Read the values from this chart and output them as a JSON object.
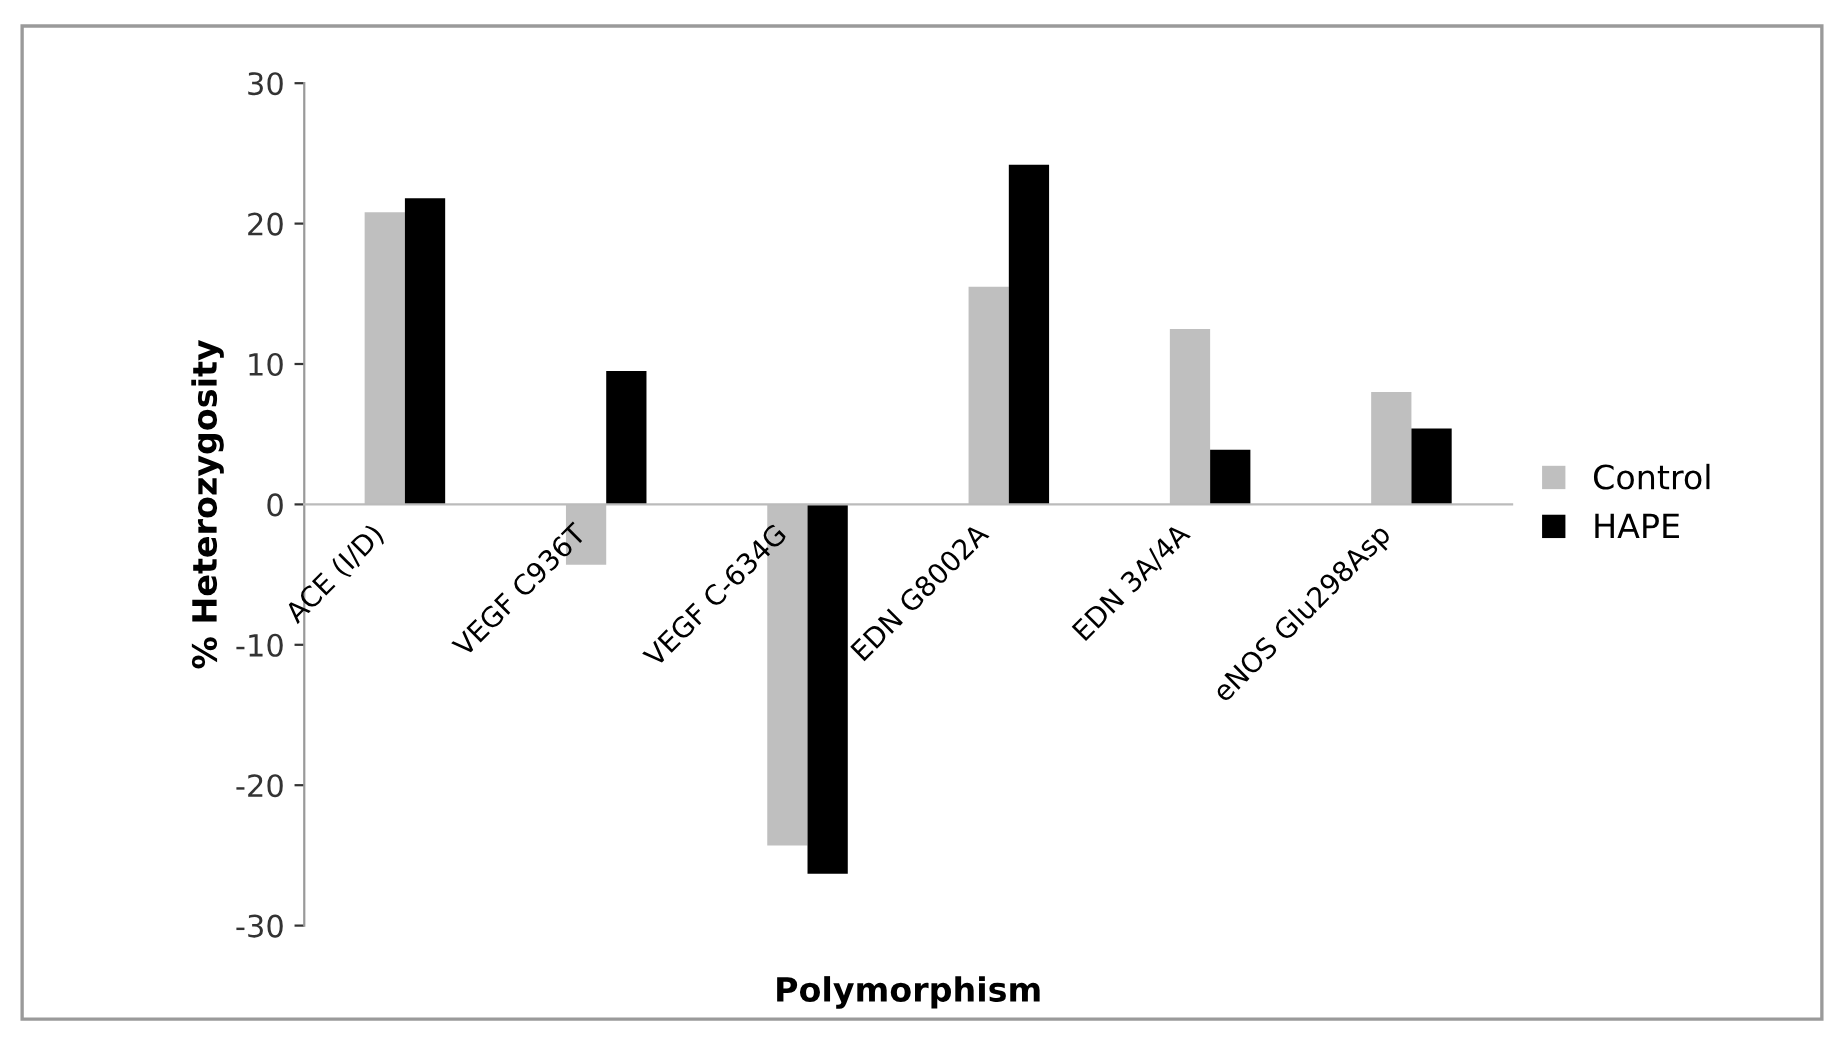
{
  "chart_data": {
    "type": "bar",
    "xlabel": "Polymorphism",
    "ylabel": "% Heterozygosity",
    "categories": [
      "ACE (I/D)",
      "VEGF C936T",
      "VEGF C-634G",
      "EDN G8002A",
      "EDN 3A/4A",
      "eNOS Glu298Asp"
    ],
    "series": [
      {
        "name": "Control",
        "color": "#bfbfbf",
        "values": [
          20.8,
          -4.3,
          -24.3,
          15.5,
          12.5,
          8.0
        ]
      },
      {
        "name": "HAPE",
        "color": "#000000",
        "values": [
          21.8,
          9.5,
          -26.3,
          24.2,
          3.9,
          5.4
        ]
      }
    ],
    "ylim": [
      -30,
      30
    ],
    "yticks": [
      -30,
      -20,
      -10,
      0,
      10,
      20,
      30
    ],
    "grid": false,
    "legend": "right"
  }
}
